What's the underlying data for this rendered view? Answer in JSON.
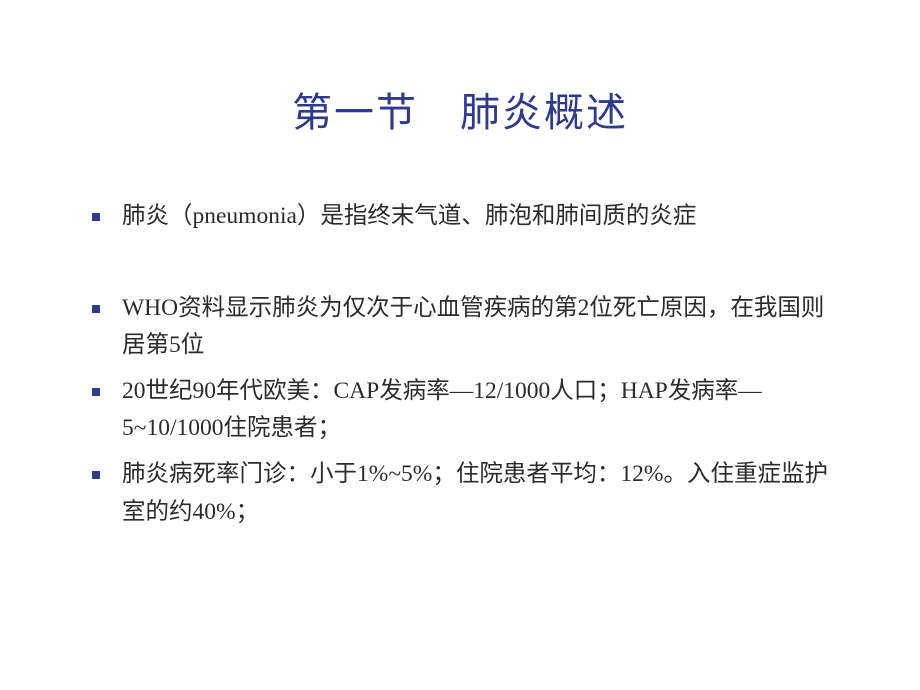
{
  "title_color": "#2e3a8c",
  "bullet_color": "#2e3a8c",
  "text_color": "#2b2b2b",
  "background_color": "#ffffff",
  "title_fontsize": 40,
  "body_fontsize": 23.5,
  "title": "第一节　肺炎概述",
  "bullets": [
    {
      "text": "肺炎（pneumonia）是指终末气道、肺泡和肺间质的炎症",
      "gap_after": true
    },
    {
      "text": "WHO资料显示肺炎为仅次于心血管疾病的第2位死亡原因，在我国则居第5位",
      "gap_after": false
    },
    {
      "text": "20世纪90年代欧美：CAP发病率—12/1000人口；HAP发病率—5~10/1000住院患者；",
      "gap_after": false
    },
    {
      "text": "肺炎病死率门诊：小于1%~5%；住院患者平均：12%。入住重症监护室的约40%；",
      "gap_after": false
    }
  ]
}
